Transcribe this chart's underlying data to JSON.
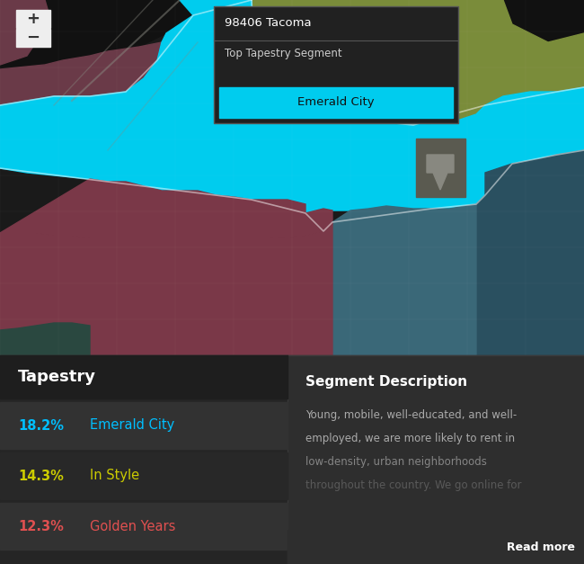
{
  "fig_width": 6.5,
  "fig_height": 6.27,
  "bg_map": "#1a1a1a",
  "bg_panel_left": "#252525",
  "bg_panel_right": "#2e2e2e",
  "bg_tapestry_header": "#1e1e1e",
  "tooltip_bg": "#212121",
  "tooltip_border": "#555555",
  "tooltip_title": "98406 Tacoma",
  "tooltip_subtitle": "Top Tapestry Segment",
  "tooltip_highlight": "Emerald City",
  "tooltip_highlight_bg": "#00ccee",
  "tapestry_title": "Tapestry",
  "segment_title": "Segment Description",
  "segment_lines": [
    "Young, mobile, well-educated, and well-",
    "employed, we are more likely to rent in",
    "low-density, urban neighborhoods",
    "throughout the country. We go online for"
  ],
  "read_more": "Read more",
  "entries": [
    {
      "pct": "18.2%",
      "label": "Emerald City",
      "pct_color": "#00bfff",
      "label_color": "#00bfff",
      "row_bg": "#323232"
    },
    {
      "pct": "14.3%",
      "label": "In Style",
      "pct_color": "#cccc00",
      "label_color": "#cccc00",
      "row_bg": "#282828"
    },
    {
      "pct": "12.3%",
      "label": "Golden Years",
      "pct_color": "#e05050",
      "label_color": "#e05050",
      "row_bg": "#323232"
    }
  ],
  "map_colors": {
    "dark_bg": "#1a1a1a",
    "mauve": "#6a3a48",
    "dark_mauve": "#3d2530",
    "olive": "#7a8c3a",
    "cyan": "#00ccee",
    "wine": "#7a3848",
    "teal_dark": "#2a5060",
    "teal_mid": "#3a6878",
    "teal_green": "#2a4840",
    "gray_icon": "#5a5a50",
    "road_gray": "#888880"
  }
}
